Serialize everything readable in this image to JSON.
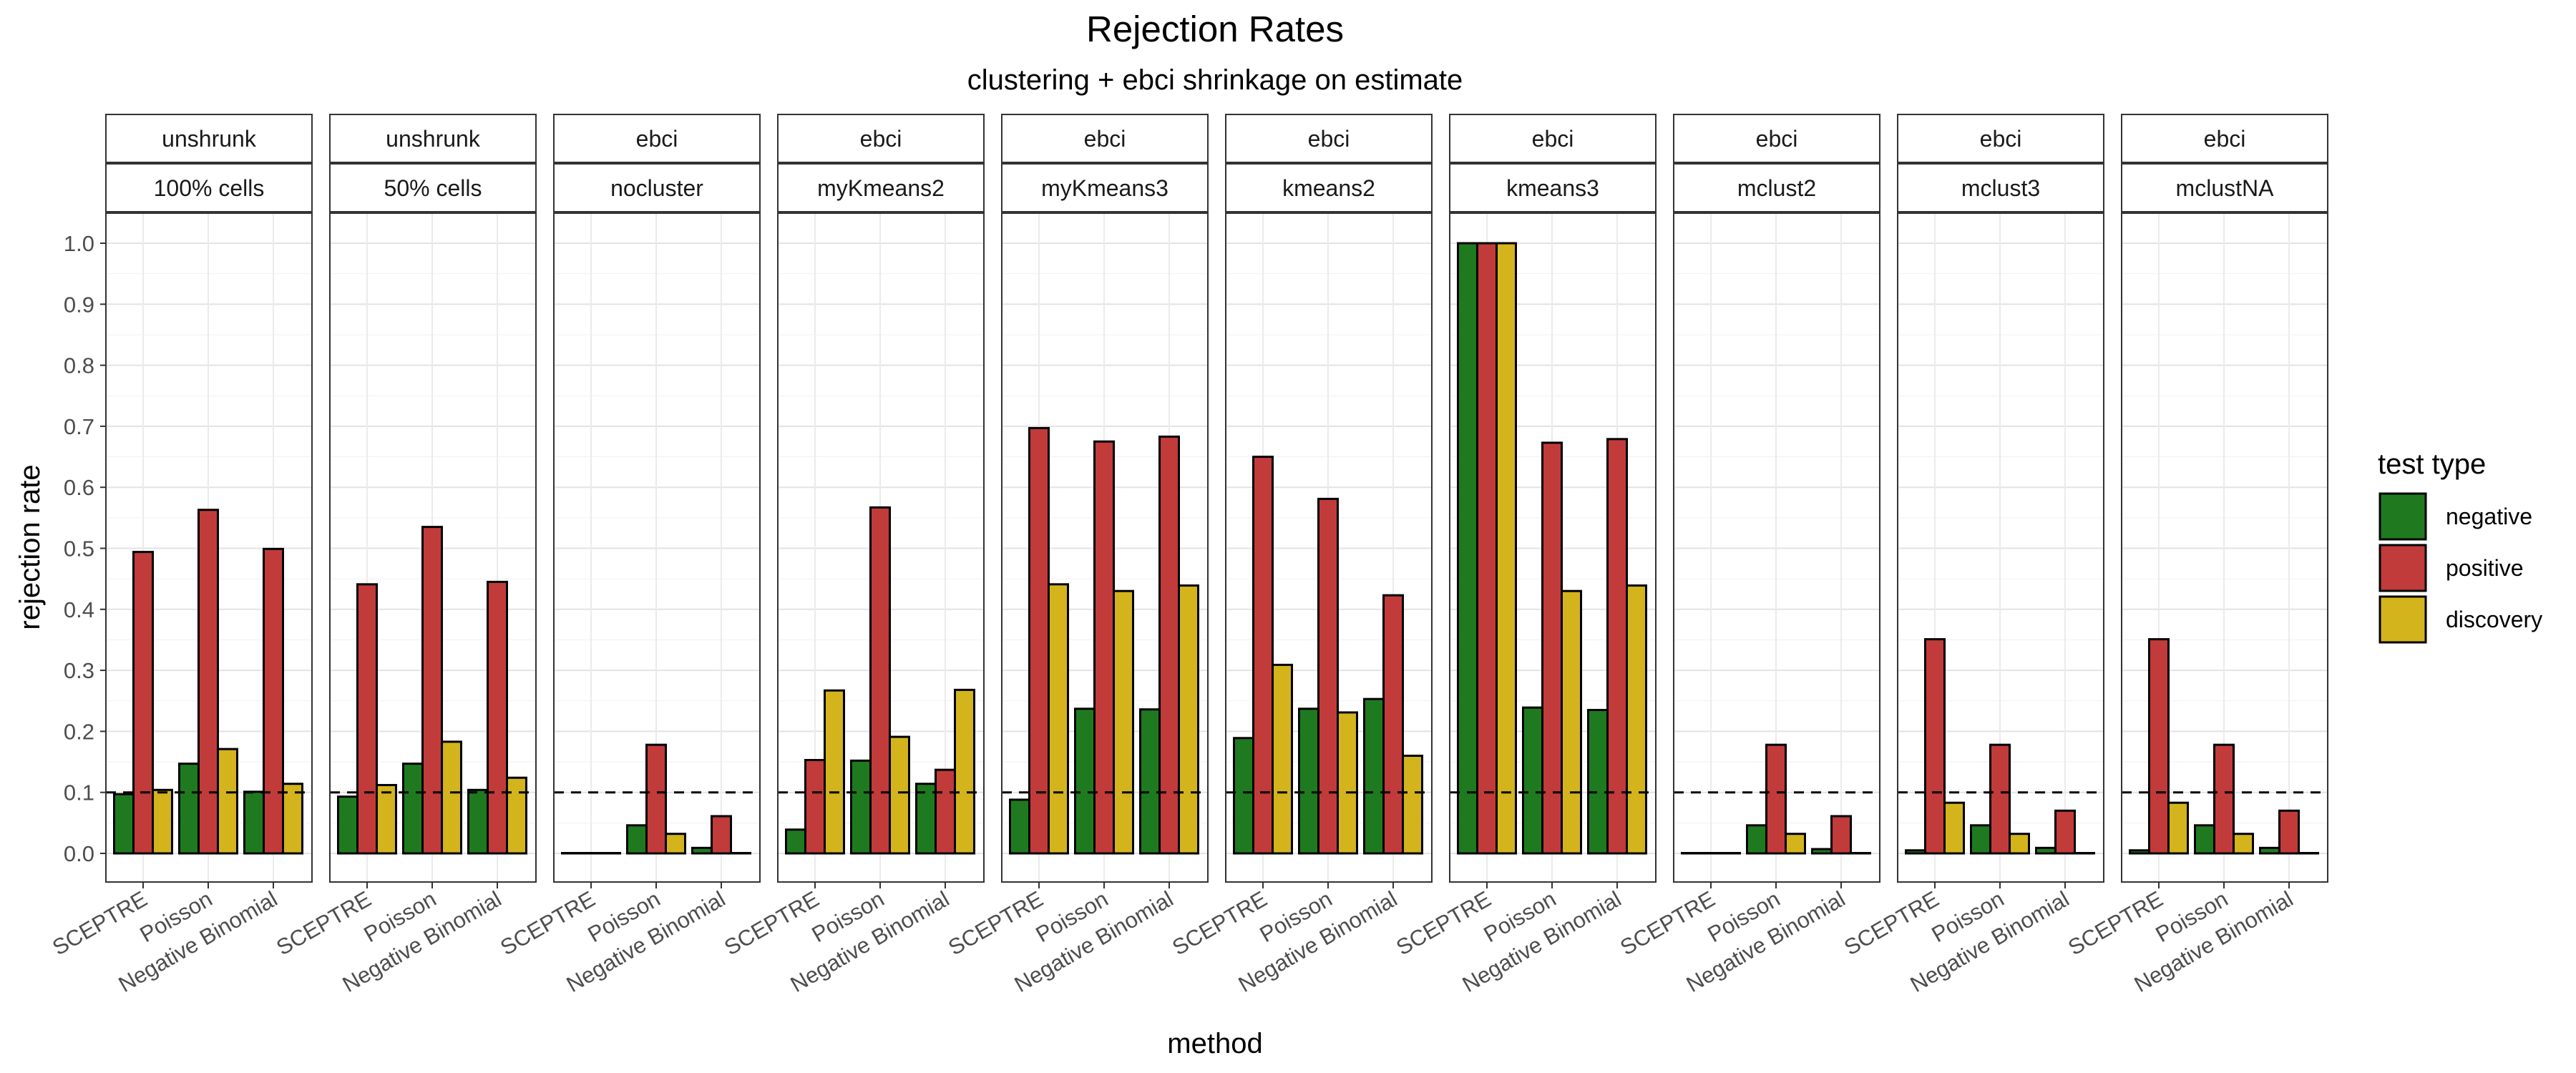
{
  "chart_data": {
    "type": "bar",
    "title": "Rejection Rates",
    "subtitle": "clustering + ebci shrinkage on estimate",
    "xlabel": "method",
    "ylabel": "rejection rate",
    "ylim": [
      -0.05,
      1.05
    ],
    "yticks": [
      "0.0",
      "0.1",
      "0.2",
      "0.3",
      "0.4",
      "0.5",
      "0.6",
      "0.7",
      "0.8",
      "0.9",
      "1.0"
    ],
    "reference_line": 0.1,
    "categories": [
      "SCEPTRE",
      "Poisson",
      "Negative Binomial"
    ],
    "legend": {
      "title": "test type",
      "position": "right",
      "items": [
        {
          "label": "negative",
          "color": "#1f7a1f"
        },
        {
          "label": "positive",
          "color": "#c13b3b"
        },
        {
          "label": "discovery",
          "color": "#d4b41c"
        }
      ]
    },
    "panels": [
      {
        "strip_top": "unshrunk",
        "strip_bottom": "100% cells",
        "series": [
          {
            "name": "negative",
            "values": [
              0.097,
              0.147,
              0.101
            ]
          },
          {
            "name": "positive",
            "values": [
              0.494,
              0.563,
              0.499
            ]
          },
          {
            "name": "discovery",
            "values": [
              0.104,
              0.171,
              0.114
            ]
          }
        ]
      },
      {
        "strip_top": "unshrunk",
        "strip_bottom": "50% cells",
        "series": [
          {
            "name": "negative",
            "values": [
              0.093,
              0.147,
              0.104
            ]
          },
          {
            "name": "positive",
            "values": [
              0.441,
              0.535,
              0.445
            ]
          },
          {
            "name": "discovery",
            "values": [
              0.112,
              0.183,
              0.124
            ]
          }
        ]
      },
      {
        "strip_top": "ebci",
        "strip_bottom": "nocluster",
        "series": [
          {
            "name": "negative",
            "values": [
              0.0,
              0.046,
              0.009
            ]
          },
          {
            "name": "positive",
            "values": [
              0.0,
              0.178,
              0.061
            ]
          },
          {
            "name": "discovery",
            "values": [
              0.0,
              0.032,
              0.0
            ]
          }
        ]
      },
      {
        "strip_top": "ebci",
        "strip_bottom": "myKmeans2",
        "series": [
          {
            "name": "negative",
            "values": [
              0.039,
              0.152,
              0.114
            ]
          },
          {
            "name": "positive",
            "values": [
              0.153,
              0.567,
              0.137
            ]
          },
          {
            "name": "discovery",
            "values": [
              0.267,
              0.191,
              0.268
            ]
          }
        ]
      },
      {
        "strip_top": "ebci",
        "strip_bottom": "myKmeans3",
        "series": [
          {
            "name": "negative",
            "values": [
              0.088,
              0.237,
              0.236
            ]
          },
          {
            "name": "positive",
            "values": [
              0.697,
              0.675,
              0.683
            ]
          },
          {
            "name": "discovery",
            "values": [
              0.441,
              0.43,
              0.439
            ]
          }
        ]
      },
      {
        "strip_top": "ebci",
        "strip_bottom": "kmeans2",
        "series": [
          {
            "name": "negative",
            "values": [
              0.189,
              0.237,
              0.253
            ]
          },
          {
            "name": "positive",
            "values": [
              0.65,
              0.581,
              0.423
            ]
          },
          {
            "name": "discovery",
            "values": [
              0.309,
              0.231,
              0.16
            ]
          }
        ]
      },
      {
        "strip_top": "ebci",
        "strip_bottom": "kmeans3",
        "series": [
          {
            "name": "negative",
            "values": [
              1.0,
              0.239,
              0.235
            ]
          },
          {
            "name": "positive",
            "values": [
              1.0,
              0.673,
              0.679
            ]
          },
          {
            "name": "discovery",
            "values": [
              1.0,
              0.43,
              0.439
            ]
          }
        ]
      },
      {
        "strip_top": "ebci",
        "strip_bottom": "mclust2",
        "series": [
          {
            "name": "negative",
            "values": [
              0.0,
              0.046,
              0.007
            ]
          },
          {
            "name": "positive",
            "values": [
              0.0,
              0.178,
              0.061
            ]
          },
          {
            "name": "discovery",
            "values": [
              0.0,
              0.032,
              0.0
            ]
          }
        ]
      },
      {
        "strip_top": "ebci",
        "strip_bottom": "mclust3",
        "series": [
          {
            "name": "negative",
            "values": [
              0.005,
              0.046,
              0.009
            ]
          },
          {
            "name": "positive",
            "values": [
              0.351,
              0.178,
              0.07
            ]
          },
          {
            "name": "discovery",
            "values": [
              0.083,
              0.032,
              0.0
            ]
          }
        ]
      },
      {
        "strip_top": "ebci",
        "strip_bottom": "mclustNA",
        "series": [
          {
            "name": "negative",
            "values": [
              0.005,
              0.046,
              0.009
            ]
          },
          {
            "name": "positive",
            "values": [
              0.351,
              0.178,
              0.07
            ]
          },
          {
            "name": "discovery",
            "values": [
              0.083,
              0.032,
              0.0
            ]
          }
        ]
      }
    ]
  }
}
